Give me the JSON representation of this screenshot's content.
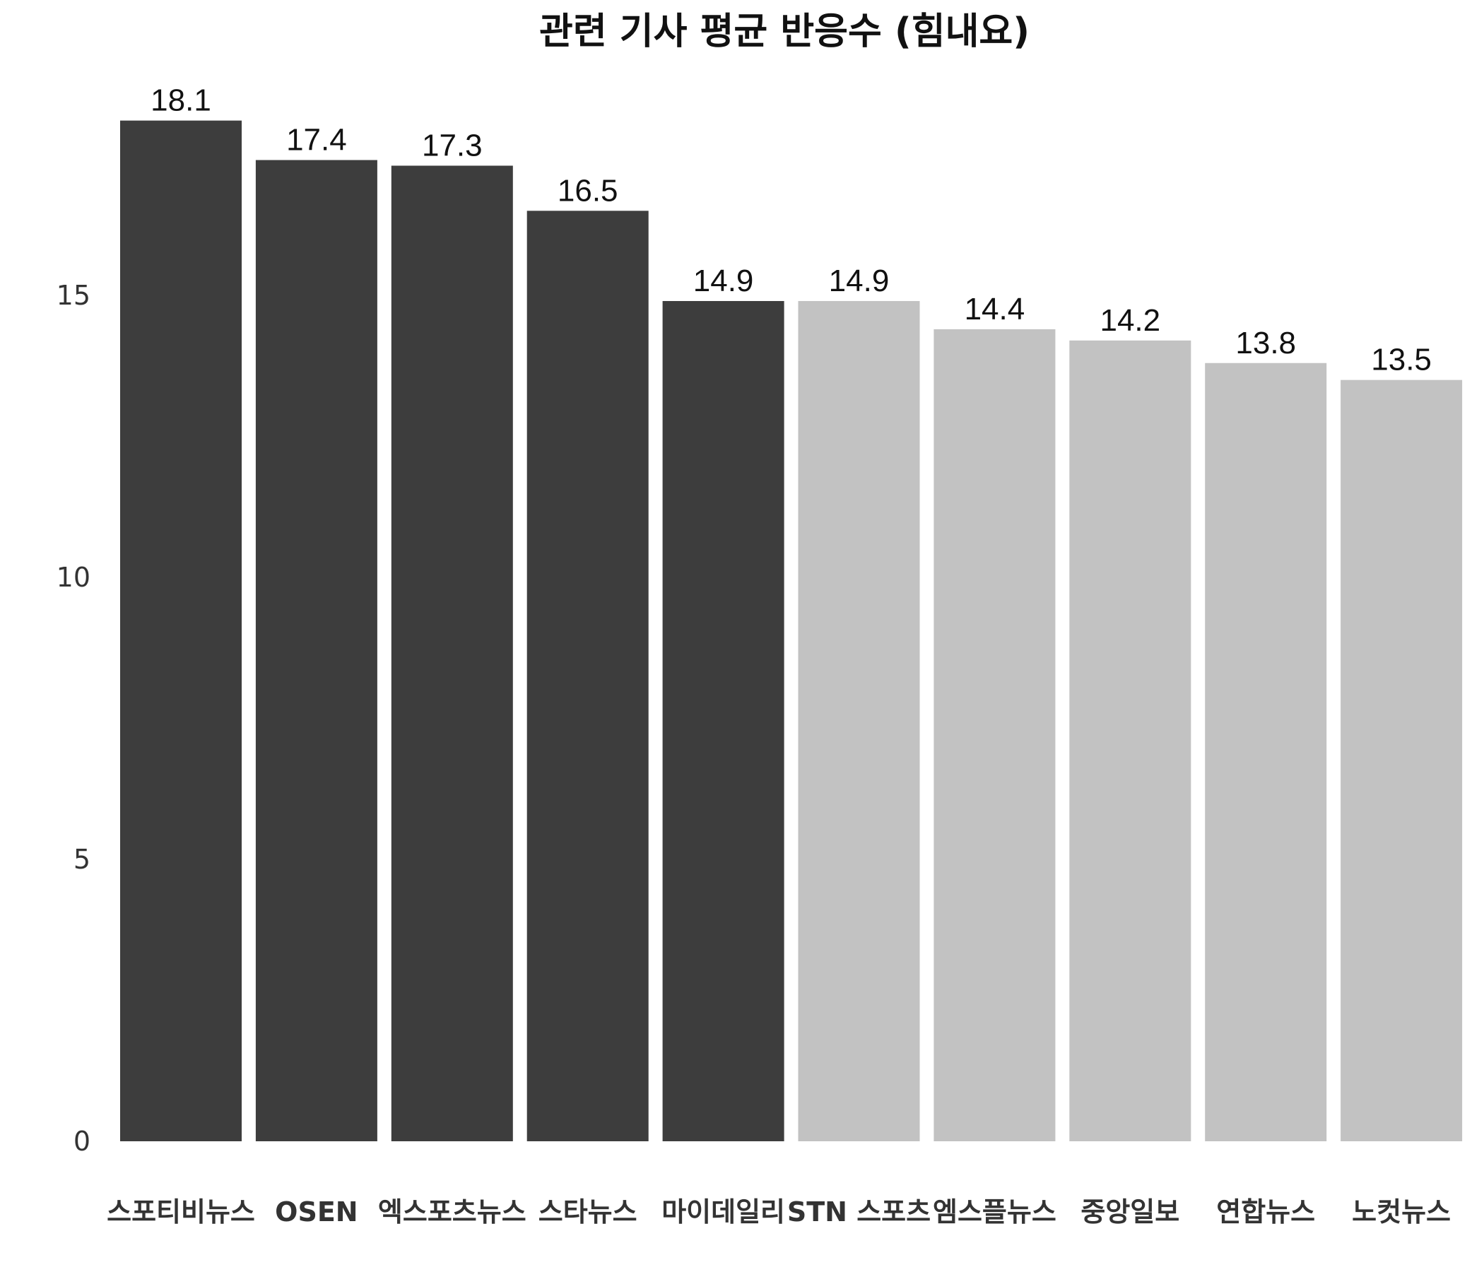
{
  "chart_data": {
    "type": "bar",
    "title": "관련 기사 평균 반응수 (힘내요)",
    "xlabel": "",
    "ylabel": "",
    "categories": [
      "스포티비뉴스",
      "OSEN",
      "엑스포츠뉴스",
      "스타뉴스",
      "마이데일리",
      "STN 스포츠",
      "엠스플뉴스",
      "중앙일보",
      "연합뉴스",
      "노컷뉴스"
    ],
    "values": [
      18.1,
      17.4,
      17.3,
      16.5,
      14.9,
      14.9,
      14.4,
      14.2,
      13.8,
      13.5
    ],
    "data_labels": [
      "18.1",
      "17.4",
      "17.3",
      "16.5",
      "14.9",
      "14.9",
      "14.4",
      "14.2",
      "13.8",
      "13.5"
    ],
    "highlighted": [
      true,
      true,
      true,
      true,
      true,
      false,
      false,
      false,
      false,
      false
    ],
    "colors": {
      "highlight": "#3d3d3d",
      "normal": "#c2c2c2"
    },
    "yticks": [
      "0",
      "5",
      "10",
      "15"
    ],
    "ylim": [
      0,
      18.5
    ],
    "grid": false,
    "legend": "none"
  }
}
